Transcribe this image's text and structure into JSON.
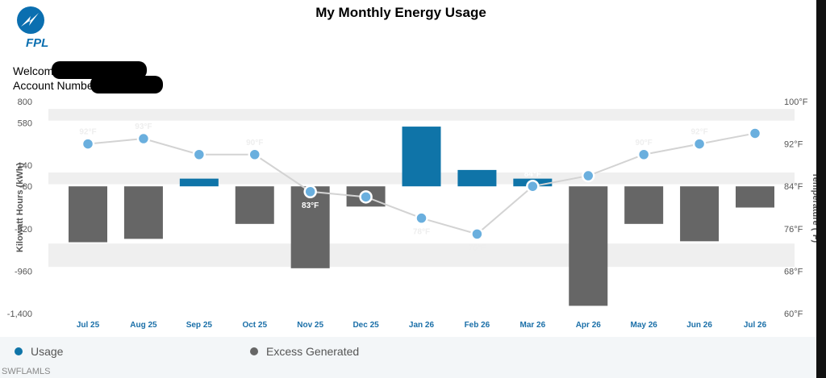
{
  "header": {
    "logo_icon": "fpl-logo-icon",
    "logo_text": "FPL",
    "title": "My Monthly Energy Usage",
    "welcome_label": "Welcom",
    "account_label": "Account Numbe"
  },
  "colors": {
    "usage": "#0f74a8",
    "excess": "#666666",
    "temperature": "#6aafde",
    "band": "#efefef",
    "month_label": "#1a6fa8"
  },
  "legend": [
    {
      "label": "Usage",
      "color": "#0f74a8"
    },
    {
      "label": "Excess Generated",
      "color": "#666666"
    }
  ],
  "watermark": "SWFLAMLS",
  "chart_data": {
    "type": "bar",
    "categories": [
      "Jul 25",
      "Aug 25",
      "Sep 25",
      "Oct 25",
      "Nov 25",
      "Dec 25",
      "Jan 26",
      "Feb 26",
      "Mar 26",
      "Apr 26",
      "May 26",
      "Jun 26",
      "Jul 26"
    ],
    "series": [
      {
        "name": "Usage",
        "axis": "left",
        "values": [
          0,
          0,
          80,
          0,
          0,
          0,
          620,
          170,
          80,
          0,
          0,
          0,
          0
        ]
      },
      {
        "name": "Excess Generated",
        "axis": "left",
        "values": [
          -580,
          -545,
          0,
          -390,
          -850,
          -210,
          0,
          0,
          0,
          -1240,
          -390,
          -570,
          -220
        ]
      },
      {
        "name": "Temperature",
        "type": "line",
        "axis": "right",
        "values": [
          92,
          93,
          90,
          90,
          83,
          82,
          78,
          75,
          84,
          86,
          90,
          92,
          94
        ],
        "point_labels": [
          "92°F",
          "93°F",
          "",
          "90°F",
          "83°F",
          "",
          "78°F",
          "75°F",
          "84°F",
          "",
          "90°F",
          "92°F",
          ""
        ]
      }
    ],
    "ylabel": "Kilowatt Hours (kWh)",
    "ylabel_right": "Temperature (°F)",
    "yticks": [
      "800",
      "580",
      "140",
      "-80",
      "-520",
      "-960",
      "-1,400"
    ],
    "yticks_right": [
      "100°F",
      "92°F",
      "84°F",
      "76°F",
      "68°F",
      "60°F"
    ],
    "ylim": [
      -1400,
      800
    ],
    "ylim_right": [
      60,
      100
    ]
  }
}
